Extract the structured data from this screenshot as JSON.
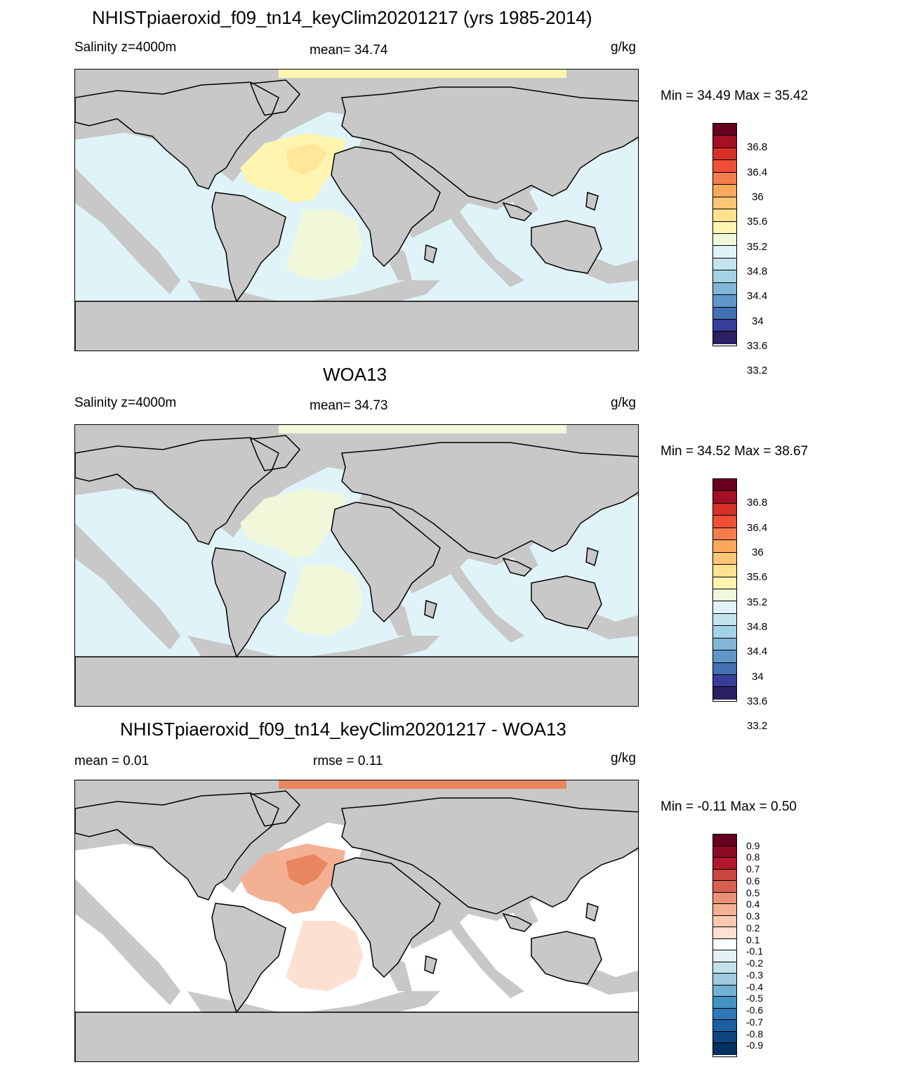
{
  "panels": [
    {
      "title": "NHISTpiaeroxid_f09_tn14_keyClim20201217 (yrs 1985-2014)",
      "left_text": "Salinity z=4000m",
      "center_text": "mean=  34.74",
      "units": "g/kg",
      "minmax": "Min =  34.49 Max =  35.42",
      "palette_name": "salinity-palette",
      "colorbar_labels": [
        "36.8",
        "36.4",
        "36",
        "35.6",
        "35.2",
        "34.8",
        "34.4",
        "34",
        "33.6",
        "33.2"
      ]
    },
    {
      "title": "WOA13",
      "left_text": "Salinity z=4000m",
      "center_text": "mean=  34.73",
      "units": "g/kg",
      "minmax": "Min =  34.52 Max =  38.67",
      "palette_name": "salinity-palette",
      "colorbar_labels": [
        "36.8",
        "36.4",
        "36",
        "35.6",
        "35.2",
        "34.8",
        "34.4",
        "34",
        "33.6",
        "33.2"
      ]
    },
    {
      "title": "NHISTpiaeroxid_f09_tn14_keyClim20201217 - WOA13",
      "left_text": "mean =   0.01",
      "center_text": "rmse =   0.11",
      "units": "g/kg",
      "minmax": "Min =  -0.11 Max =   0.50",
      "palette_name": "difference-palette",
      "colorbar_labels": [
        "0.9",
        "0.8",
        "0.7",
        "0.6",
        "0.5",
        "0.4",
        "0.3",
        "0.2",
        "0.1",
        "-0.1",
        "-0.2",
        "-0.3",
        "-0.4",
        "-0.5",
        "-0.6",
        "-0.7",
        "-0.8",
        "-0.9"
      ]
    }
  ],
  "colors": {
    "land": "#c8c8c8",
    "ocean_fresh": "#e0f3f8",
    "ocean_mid": "#f1f8da",
    "ocean_salty": "#fff5b0",
    "ocean_salty2": "#ffe79a",
    "diff_zero": "#ffffff",
    "diff_pos1": "#fde0d2",
    "diff_pos2": "#f4b093",
    "diff_pos3": "#e8865f",
    "salinity_palette": [
      "#67001f",
      "#a50f26",
      "#d73027",
      "#f14f35",
      "#f47d4b",
      "#fca85c",
      "#fdc674",
      "#fee290",
      "#fff5b0",
      "#f0f8da",
      "#e0f3f8",
      "#c3e4ef",
      "#a3d2e6",
      "#82b6d7",
      "#6097c8",
      "#4370b1",
      "#383e97",
      "#2c1f62"
    ],
    "difference_palette": [
      "#67001f",
      "#8c0b24",
      "#b2182b",
      "#c94741",
      "#d6604d",
      "#eb9076",
      "#f4b093",
      "#f9cab0",
      "#fde0d2",
      "#ffffff",
      "#e4f1f7",
      "#c4e0ec",
      "#9fcbe1",
      "#72b0d4",
      "#4393c3",
      "#2f78b5",
      "#1d5ea1",
      "#0f457f",
      "#053061"
    ]
  }
}
